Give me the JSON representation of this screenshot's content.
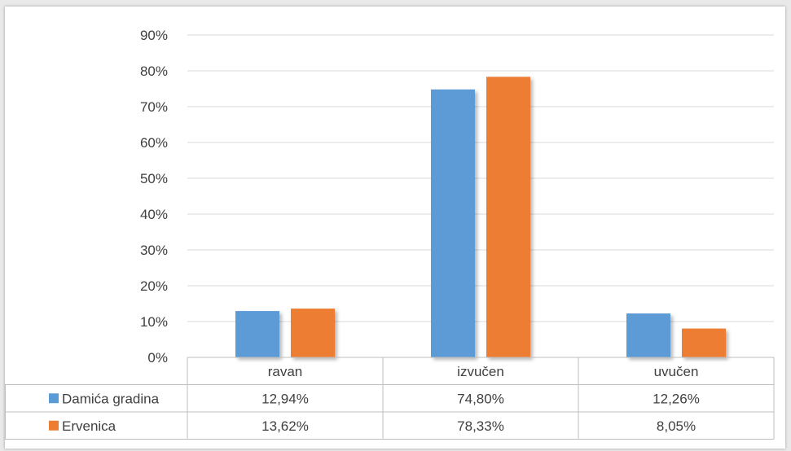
{
  "colors": {
    "series_1": "#5b9bd5",
    "series_2": "#ed7d31",
    "grid": "#d9d9d9",
    "text": "#404040"
  },
  "chart_data": {
    "type": "bar",
    "categories": [
      "ravan",
      "izvučen",
      "uvučen"
    ],
    "series": [
      {
        "name": "Damića gradina",
        "values": [
          12.94,
          74.8,
          12.26
        ],
        "labels": [
          "12,94%",
          "74,80%",
          "12,26%"
        ]
      },
      {
        "name": "Ervenica",
        "values": [
          13.62,
          78.33,
          8.05
        ],
        "labels": [
          "13,62%",
          "78,33%",
          "8,05%"
        ]
      }
    ],
    "yticks": [
      "0%",
      "10%",
      "20%",
      "30%",
      "40%",
      "50%",
      "60%",
      "70%",
      "80%",
      "90%"
    ],
    "ylim": [
      0,
      90
    ],
    "grid": true,
    "legend": "data-table-left"
  }
}
